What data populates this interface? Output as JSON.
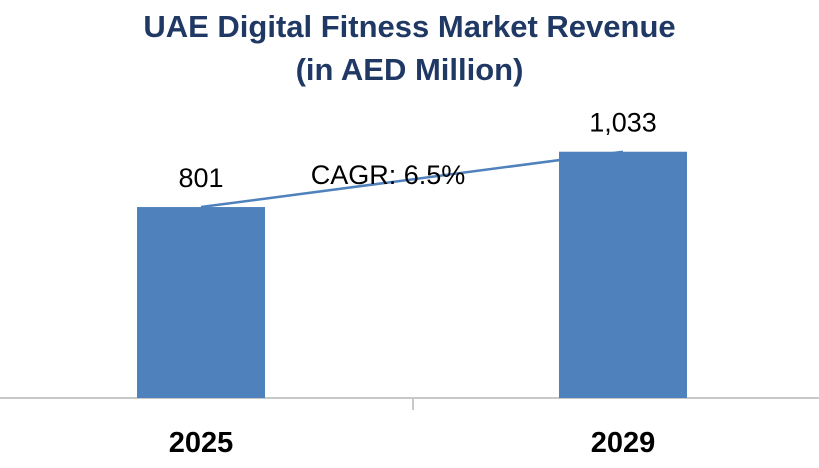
{
  "chart_data": {
    "type": "bar",
    "title": "UAE Digital Fitness Market Revenue",
    "subtitle": "(in AED Million)",
    "categories": [
      "2025",
      "2029"
    ],
    "values": [
      801,
      1033
    ],
    "value_labels": [
      "801",
      "1,033"
    ],
    "annotation": "CAGR: 6.5%",
    "bar_color": "#4f81bd",
    "line_color": "#4f81bd",
    "title_color": "#1f3864",
    "ylim": [
      0,
      1250
    ],
    "grid": false,
    "legend": "none"
  }
}
